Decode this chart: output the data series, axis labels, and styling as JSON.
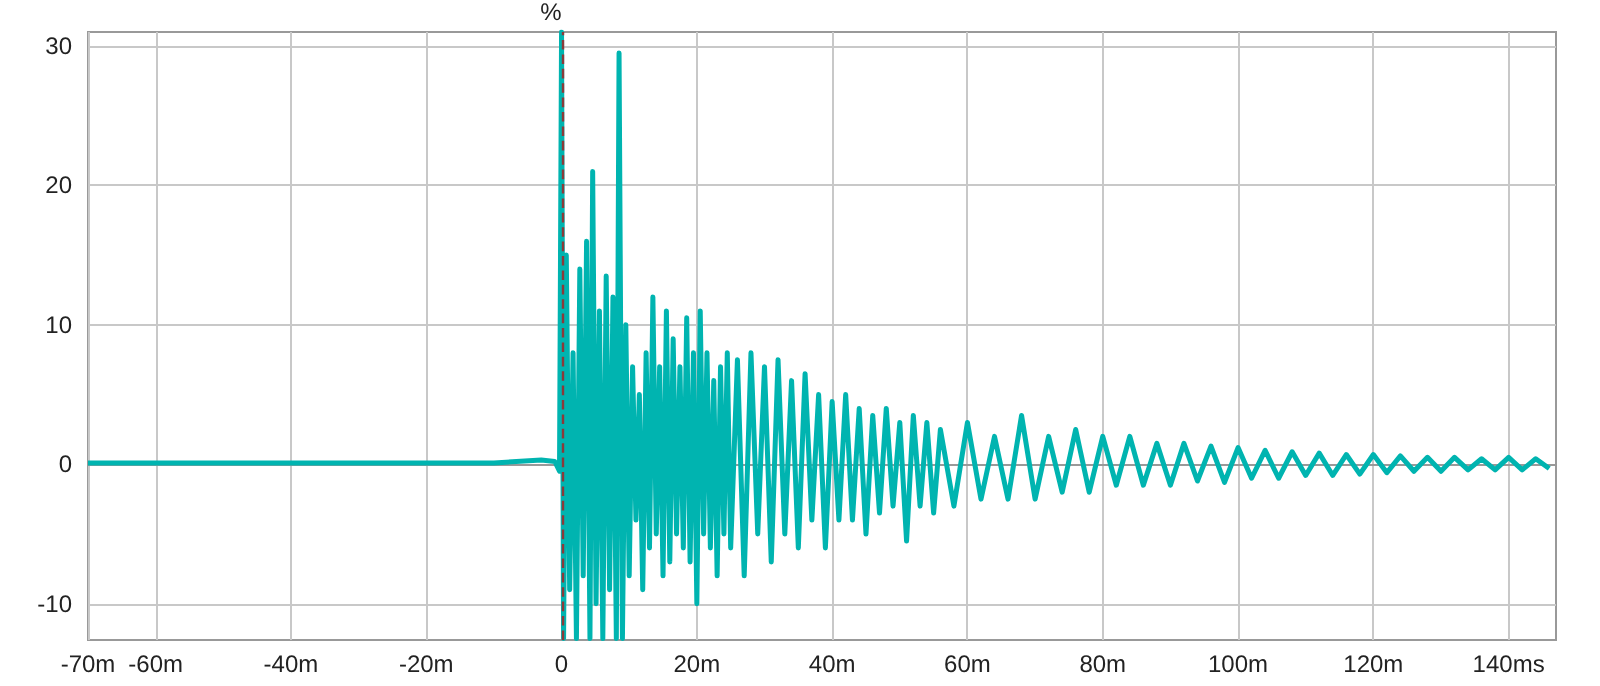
{
  "chart_data": {
    "type": "line",
    "ylabel": "%",
    "x": [
      -70,
      -60,
      -40,
      -20,
      -10,
      -3,
      -1,
      -0.3,
      0,
      0.3,
      0.7,
      1.2,
      1.7,
      2.2,
      2.7,
      3.2,
      3.7,
      4.2,
      4.6,
      5.1,
      5.6,
      6.1,
      6.6,
      7.1,
      7.6,
      8.1,
      8.5,
      9,
      9.5,
      10,
      10.5,
      11,
      11.5,
      12,
      12.5,
      13,
      13.5,
      14,
      14.5,
      15,
      15.5,
      16,
      16.5,
      17,
      17.5,
      18,
      18.5,
      19,
      19.5,
      20,
      20.5,
      21,
      21.5,
      22,
      22.5,
      23,
      23.5,
      24,
      24.5,
      25,
      26,
      27,
      28,
      29,
      30,
      31,
      32,
      33,
      34,
      35,
      36,
      37,
      38,
      39,
      40,
      41,
      42,
      43,
      44,
      45,
      46,
      47,
      48,
      49,
      50,
      51,
      52,
      53,
      54,
      55,
      56,
      58,
      60,
      62,
      64,
      66,
      68,
      70,
      72,
      74,
      76,
      78,
      80,
      82,
      84,
      86,
      88,
      90,
      92,
      94,
      96,
      98,
      100,
      102,
      104,
      106,
      108,
      110,
      112,
      114,
      116,
      118,
      120,
      122,
      124,
      126,
      128,
      130,
      132,
      134,
      136,
      138,
      140,
      142,
      144,
      146
    ],
    "series": [
      {
        "color": "#00b4b0",
        "values": [
          0.1,
          0.1,
          0.1,
          0.1,
          0.1,
          0.3,
          0.2,
          -0.5,
          31,
          -12.5,
          15,
          -9,
          8,
          -12.5,
          14,
          -8,
          16,
          -12.5,
          21,
          -10,
          11,
          -12.5,
          13.5,
          -9,
          12,
          -12.5,
          29.5,
          -12.5,
          10,
          -8,
          7,
          -4,
          5,
          -9,
          8,
          -6,
          12,
          -5,
          7,
          -8,
          11,
          -7,
          9,
          -5,
          7,
          -6,
          10.5,
          -7,
          8,
          -10,
          11,
          -5,
          8,
          -6,
          6,
          -8,
          7,
          -5,
          8,
          -6,
          7.5,
          -8,
          8,
          -5,
          7,
          -7,
          7.5,
          -5,
          6,
          -6,
          6.5,
          -4,
          5,
          -6,
          4.5,
          -4,
          5,
          -4,
          4,
          -5,
          3.5,
          -3.5,
          4,
          -3,
          3,
          -5.5,
          3.5,
          -3,
          3,
          -3.5,
          2.5,
          -3,
          3,
          -2.5,
          2,
          -2.5,
          3.5,
          -2.5,
          2,
          -2,
          2.5,
          -2,
          2,
          -1.5,
          2,
          -1.5,
          1.5,
          -1.5,
          1.5,
          -1.2,
          1.3,
          -1.3,
          1.2,
          -1,
          1,
          -1,
          0.9,
          -0.8,
          0.8,
          -0.8,
          0.7,
          -0.7,
          0.7,
          -0.6,
          0.6,
          -0.5,
          0.5,
          -0.5,
          0.5,
          -0.4,
          0.4,
          -0.4,
          0.5,
          -0.4,
          0.4,
          -0.3
        ]
      }
    ],
    "xlim": [
      -70,
      147
    ],
    "xticks": [
      {
        "value": -70,
        "label": "-70m"
      },
      {
        "value": -60,
        "label": "-60m"
      },
      {
        "value": -40,
        "label": "-40m"
      },
      {
        "value": -20,
        "label": "-20m"
      },
      0,
      {
        "value": 20,
        "label": "20m"
      },
      {
        "value": 40,
        "label": "40m"
      },
      {
        "value": 60,
        "label": "60m"
      },
      {
        "value": 80,
        "label": "80m"
      },
      {
        "value": 100,
        "label": "100m"
      },
      {
        "value": 120,
        "label": "120m"
      },
      {
        "value": 140,
        "label": "140ms"
      }
    ],
    "ylim": [
      -12.6,
      31
    ],
    "yticks": [
      -10,
      0,
      10,
      20,
      30
    ],
    "grid": true,
    "marker": "none",
    "line_style": "solid",
    "ref_lines": [
      {
        "axis": "x",
        "value": 0,
        "color": "#8b3a3a",
        "line_style": "dashed"
      }
    ]
  }
}
